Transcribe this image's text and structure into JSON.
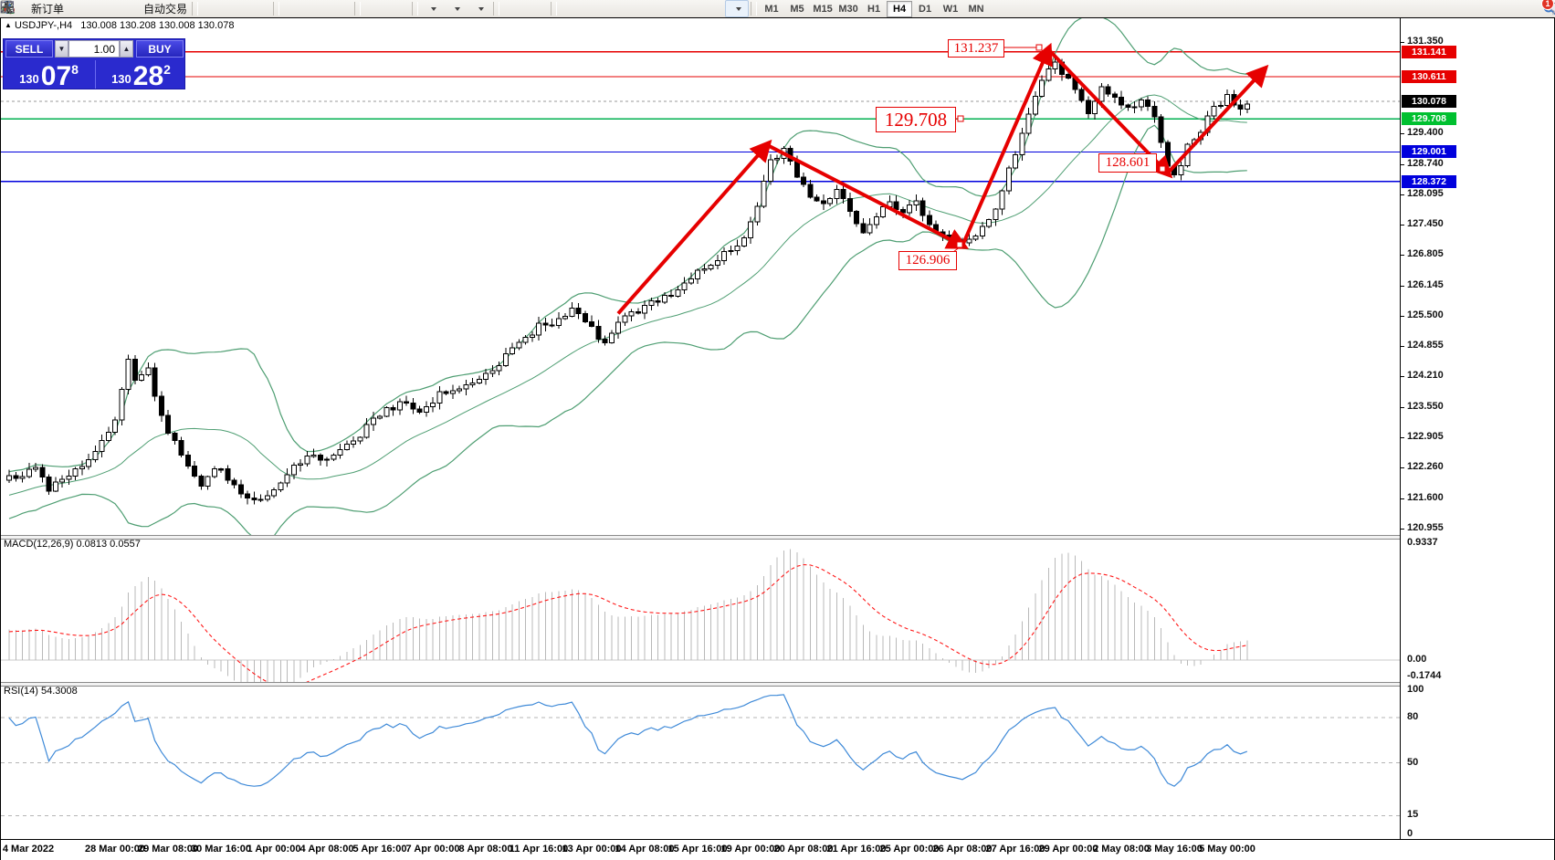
{
  "toolbar": {
    "new_order_label": "新订单",
    "autotrade_label": "自动交易",
    "timeframes": [
      "M1",
      "M5",
      "M15",
      "M30",
      "H1",
      "H4",
      "D1",
      "W1",
      "MN"
    ],
    "active_timeframe": "H4",
    "notification_count": "1",
    "buttons": [
      {
        "name": "chart-search-icon"
      },
      {
        "name": "new-order-icon",
        "labelKey": "new_order_label"
      },
      {
        "name": "eraser-icon"
      },
      {
        "name": "expert-advisor-icon"
      },
      {
        "name": "signal-icon"
      },
      {
        "name": "autotrading-icon",
        "labelKey": "autotrade_label"
      },
      {
        "sep": true
      },
      {
        "name": "bar-chart-icon"
      },
      {
        "name": "candlestick-icon"
      },
      {
        "name": "line-chart-icon"
      },
      {
        "sep": true
      },
      {
        "name": "zoom-in-icon"
      },
      {
        "name": "zoom-out-icon"
      },
      {
        "name": "tile-windows-icon"
      },
      {
        "sep": true
      },
      {
        "name": "auto-scroll-icon"
      },
      {
        "name": "chart-shift-icon"
      },
      {
        "sep": true
      },
      {
        "name": "indicators-icon",
        "dropdown": true
      },
      {
        "name": "periods-icon",
        "dropdown": true
      },
      {
        "name": "templates-icon",
        "dropdown": true
      },
      {
        "sep": true
      },
      {
        "name": "cursor-icon"
      },
      {
        "name": "crosshair-icon"
      },
      {
        "sep": true
      },
      {
        "name": "vline-icon"
      },
      {
        "name": "hline-icon"
      },
      {
        "name": "trendline-icon"
      },
      {
        "name": "channel-icon"
      },
      {
        "name": "fibonacci-icon"
      },
      {
        "name": "text-icon"
      },
      {
        "name": "label-icon"
      },
      {
        "name": "shapes-icon",
        "dropdown": true
      }
    ]
  },
  "chart": {
    "symbol_marker": "▲",
    "symbol": "USDJPY-,H4",
    "ohlc_text": "130.008 130.208 130.008 130.078",
    "trade_panel": {
      "sell_label": "SELL",
      "buy_label": "BUY",
      "volume": "1.00",
      "sell_price_main": "130",
      "sell_price_big": "07",
      "sell_price_sup": "8",
      "buy_price_main": "130",
      "buy_price_big": "28",
      "buy_price_sup": "2"
    },
    "axis_ticks": [
      "131.350",
      "129.400",
      "128.740",
      "128.095",
      "127.450",
      "126.805",
      "126.145",
      "125.500",
      "124.855",
      "124.210",
      "123.550",
      "122.905",
      "122.260",
      "121.600",
      "120.955"
    ],
    "price_tags": [
      {
        "value": "131.141",
        "color": "#e60000",
        "price": 131.141
      },
      {
        "value": "130.611",
        "color": "#e60000",
        "price": 130.611
      },
      {
        "value": "130.078",
        "color": "#000000",
        "price": 130.078
      },
      {
        "value": "129.708",
        "color": "#00c030",
        "price": 129.708
      },
      {
        "value": "129.001",
        "color": "#0000dd",
        "price": 129.001
      },
      {
        "value": "128.372",
        "color": "#0000dd",
        "price": 128.372
      }
    ],
    "hlines": [
      {
        "price": 131.141,
        "color": "#e60000",
        "style": "solid"
      },
      {
        "price": 130.611,
        "color": "#e60000",
        "style": "solid"
      },
      {
        "price": 130.078,
        "color": "#9a9a9a",
        "style": "dashed"
      },
      {
        "price": 129.708,
        "color": "#00b050",
        "style": "solid"
      },
      {
        "price": 129.001,
        "color": "#0000dd",
        "style": "solid"
      },
      {
        "price": 128.372,
        "color": "#0000dd",
        "style": "solid"
      }
    ]
  },
  "chart_data": {
    "type": "candlestick",
    "symbol": "USDJPY-",
    "timeframe": "H4",
    "visible_range": {
      "start": "24 Mar 2022",
      "end": "5 May 2022"
    },
    "price_axis": {
      "min": 120.955,
      "max": 131.35,
      "ticks": [
        131.35,
        129.4,
        128.74,
        128.095,
        127.45,
        126.805,
        126.145,
        125.5,
        124.855,
        124.21,
        123.55,
        122.905,
        122.26,
        121.6,
        120.955
      ]
    },
    "close_waypoints": [
      [
        -40,
        120.7
      ],
      [
        -20,
        121.4
      ],
      [
        -8,
        121.9
      ],
      [
        0,
        122.2
      ],
      [
        2,
        121.8
      ],
      [
        5,
        122.1
      ],
      [
        9,
        122.6
      ],
      [
        12,
        123.2
      ],
      [
        14,
        124.6
      ],
      [
        15,
        124.1
      ],
      [
        17,
        124.4
      ],
      [
        19,
        123.3
      ],
      [
        22,
        122.6
      ],
      [
        25,
        121.9
      ],
      [
        27,
        122.3
      ],
      [
        30,
        121.9
      ],
      [
        33,
        121.5
      ],
      [
        36,
        121.8
      ],
      [
        40,
        122.4
      ],
      [
        44,
        122.5
      ],
      [
        48,
        122.8
      ],
      [
        52,
        123.4
      ],
      [
        55,
        123.6
      ],
      [
        58,
        123.5
      ],
      [
        61,
        123.8
      ],
      [
        64,
        123.9
      ],
      [
        67,
        124.1
      ],
      [
        70,
        124.5
      ],
      [
        73,
        124.9
      ],
      [
        76,
        125.3
      ],
      [
        79,
        125.4
      ],
      [
        81,
        125.7
      ],
      [
        84,
        125.2
      ],
      [
        86,
        124.9
      ],
      [
        89,
        125.5
      ],
      [
        92,
        125.7
      ],
      [
        95,
        125.9
      ],
      [
        98,
        126.2
      ],
      [
        101,
        126.5
      ],
      [
        104,
        126.8
      ],
      [
        107,
        127.2
      ],
      [
        109,
        127.9
      ],
      [
        111,
        128.8
      ],
      [
        113,
        129.05
      ],
      [
        115,
        128.5
      ],
      [
        117,
        128.1
      ],
      [
        119,
        127.9
      ],
      [
        121,
        128.2
      ],
      [
        123,
        127.7
      ],
      [
        125,
        127.3
      ],
      [
        127,
        127.6
      ],
      [
        129,
        127.9
      ],
      [
        131,
        127.7
      ],
      [
        133,
        127.9
      ],
      [
        135,
        127.4
      ],
      [
        137,
        127.2
      ],
      [
        140,
        126.98
      ],
      [
        142,
        127.2
      ],
      [
        144,
        127.5
      ],
      [
        146,
        128.2
      ],
      [
        148,
        129.0
      ],
      [
        150,
        129.8
      ],
      [
        152,
        130.5
      ],
      [
        154,
        131.0
      ],
      [
        155,
        130.7
      ],
      [
        157,
        130.3
      ],
      [
        159,
        129.9
      ],
      [
        161,
        130.4
      ],
      [
        163,
        130.1
      ],
      [
        165,
        130.0
      ],
      [
        167,
        130.05
      ],
      [
        169,
        129.8
      ],
      [
        171,
        128.7
      ],
      [
        172,
        128.45
      ],
      [
        174,
        129.1
      ],
      [
        176,
        129.5
      ],
      [
        178,
        129.9
      ],
      [
        180,
        130.15
      ],
      [
        182,
        129.85
      ],
      [
        183,
        130.078
      ]
    ],
    "indicators": [
      {
        "name": "Bollinger Bands",
        "period": 20,
        "deviation": 2,
        "color": "#4e9e72"
      },
      {
        "name": "MACD",
        "params": "12,26,9",
        "values": [
          0.0813,
          0.0557
        ],
        "range": [
          -0.1744,
          0.9337
        ],
        "histogram_color": "#b9b9b9",
        "signal_color": "#ff1a1a"
      },
      {
        "name": "RSI",
        "period": 14,
        "value": 54.3008,
        "levels": [
          80,
          50,
          15
        ],
        "range": [
          0,
          100
        ],
        "color": "#3f8ad8"
      }
    ],
    "annotations": {
      "swing_labels": [
        {
          "text": "131.237",
          "price": 131.237
        },
        {
          "text": "129.708",
          "price": 129.708
        },
        {
          "text": "128.601",
          "price": 128.601
        },
        {
          "text": "126.906",
          "price": 126.906
        }
      ],
      "zigzag_points": [
        [
          88,
          125.55
        ],
        [
          110.5,
          129.15
        ],
        [
          140,
          127.0
        ],
        [
          153,
          131.19
        ],
        [
          171,
          128.55
        ],
        [
          185.5,
          130.75
        ]
      ],
      "zigzag_color": "#e60000"
    },
    "ohlc_current": {
      "open": 130.008,
      "high": 130.208,
      "low": 130.008,
      "close": 130.078
    },
    "bid": 130.078,
    "ask": 130.282
  },
  "macd": {
    "label": "MACD(12,26,9) 0.0813 0.0557",
    "axis": [
      "0.9337",
      "0.00",
      "-0.1744"
    ]
  },
  "rsi": {
    "label": "RSI(14) 54.3008",
    "axis": [
      "100",
      "80",
      "50",
      "15",
      "0"
    ]
  },
  "time_axis": {
    "labels": [
      "4 Mar 2022",
      "28 Mar 00:00",
      "29 Mar 08:00",
      "30 Mar 16:00",
      "1 Apr 00:00",
      "4 Apr 08:00",
      "5 Apr 16:00",
      "7 Apr 00:00",
      "8 Apr 08:00",
      "11 Apr 16:00",
      "13 Apr 00:00",
      "14 Apr 08:00",
      "15 Apr 16:00",
      "19 Apr 00:00",
      "20 Apr 08:00",
      "21 Apr 16:00",
      "25 Apr 00:00",
      "26 Apr 08:00",
      "27 Apr 16:00",
      "29 Apr 00:00",
      "2 May 08:00",
      "3 May 16:00",
      "5 May 00:00"
    ]
  }
}
